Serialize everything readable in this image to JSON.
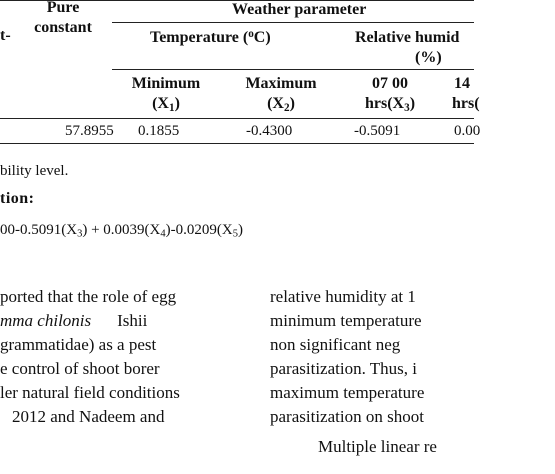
{
  "table": {
    "col0_header_fragment": "t-",
    "pure_constant_header": [
      "Pure",
      "constant"
    ],
    "weather_parameter_header": "Weather parameter",
    "temperature_header": {
      "text": "Temperature (",
      "sup": "o",
      "tail": "C)"
    },
    "relative_humidity_header": {
      "line1": "Relative humid",
      "line2": "(%)"
    },
    "columns": [
      {
        "line1": "Minimum",
        "line2": "(X",
        "sub": "1",
        "close": ")"
      },
      {
        "line1": "Maximum",
        "line2": "(X",
        "sub": "2",
        "close": ")"
      },
      {
        "line1": "07 00",
        "line2": "hrs(X",
        "sub": "3",
        "close": ")"
      },
      {
        "line1": "14",
        "line2": "hrs(",
        "sub": "",
        "close": ""
      }
    ],
    "row": {
      "pure_constant": "57.8955",
      "values": [
        "0.1855",
        "-0.4300",
        "-0.5091",
        "0.00"
      ]
    }
  },
  "footnote": "bility level.",
  "equation": {
    "label": "tion:",
    "parts": [
      {
        "t": "00-0.5091(X",
        "s": "3"
      },
      {
        "t": ") + 0.0039(X",
        "s": "4"
      },
      {
        "t": ")-0.0209(X",
        "s": "5"
      },
      {
        "t": ")",
        "s": ""
      }
    ]
  },
  "left_column": [
    "ported that the role of egg",
    "mma chilonis Ishii",
    "grammatidae) as a pest",
    "e control of shoot borer",
    "ler natural field conditions",
    "2012 and Nadeem and"
  ],
  "right_column": [
    "relative humidity at 1",
    "minimum temperature",
    "non significant neg",
    "parasitization. Thus, i",
    "maximum temperature",
    "parasitization on shoot",
    "Multiple linear re"
  ]
}
